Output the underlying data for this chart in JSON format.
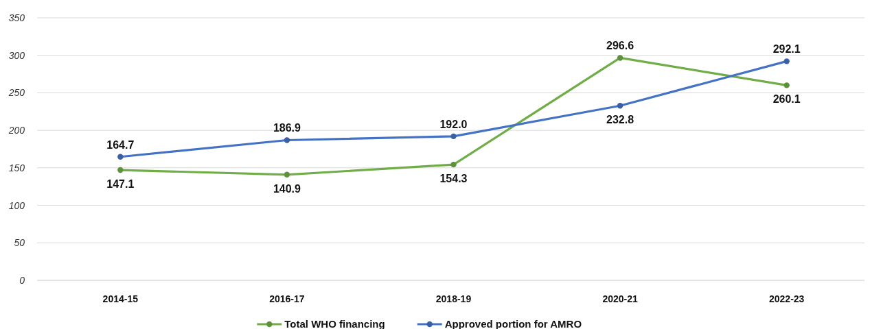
{
  "chart_data": {
    "type": "line",
    "categories": [
      "2014-15",
      "2016-17",
      "2018-19",
      "2020-21",
      "2022-23"
    ],
    "series": [
      {
        "name": "Total WHO financing",
        "color": "#70ad47",
        "values": [
          147.1,
          140.9,
          154.3,
          296.6,
          260.1
        ]
      },
      {
        "name": "Approved portion for AMRO",
        "color": "#4472c4",
        "values": [
          164.7,
          186.9,
          192.0,
          232.8,
          292.1
        ]
      }
    ],
    "value_labels": [
      [
        "147.1",
        "140.9",
        "154.3",
        "296.6",
        "260.1"
      ],
      [
        "164.7",
        "186.9",
        "192.0",
        "232.8",
        "292.1"
      ]
    ],
    "ylim": [
      0,
      350
    ],
    "yticks": [
      0,
      50,
      100,
      150,
      200,
      250,
      300,
      350
    ],
    "grid": "y",
    "legend": "bottom",
    "marker": "circle",
    "line_style": "solid"
  }
}
